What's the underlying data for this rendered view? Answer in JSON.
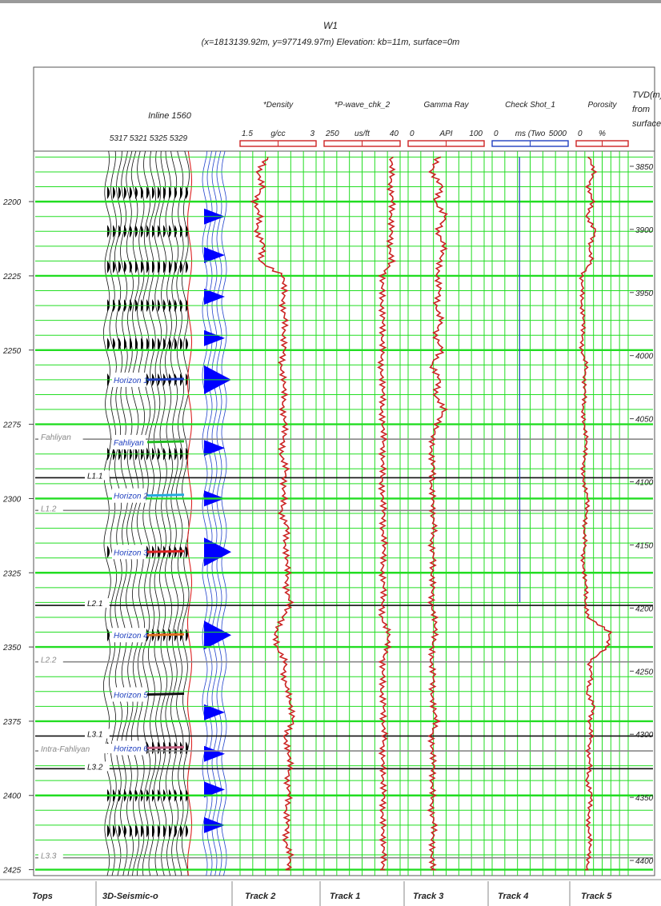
{
  "well": {
    "name": "W1",
    "location": "(x=1813139.92m, y=977149.97m) Elevation: kb=11m, surface=0m"
  },
  "seismic": {
    "title": "Inline 1560",
    "traces": [
      "5317",
      "5321",
      "5325",
      "5329"
    ]
  },
  "tvd_header": {
    "line1": "TVD(m)",
    "line2": "from",
    "line3": "surface"
  },
  "left_axis": {
    "ticks": [
      "2200",
      "2225",
      "2250",
      "2275",
      "2300",
      "2325",
      "2350",
      "2375",
      "2400",
      "2425"
    ]
  },
  "right_axis": {
    "ticks": [
      "3850",
      "3900",
      "3950",
      "4000",
      "4050",
      "4100",
      "4150",
      "4200",
      "4250",
      "4300",
      "4350",
      "4400"
    ]
  },
  "tracks": [
    {
      "key": "density",
      "name": "*Density",
      "min": "1.5",
      "unit": "g/cc",
      "max": "3",
      "color": "#cc2222"
    },
    {
      "key": "pwave",
      "name": "*P-wave_chk_2",
      "min": "250",
      "unit": "us/ft",
      "max": "40",
      "color": "#cc2222"
    },
    {
      "key": "gamma",
      "name": "Gamma Ray",
      "min": "0",
      "unit": "API",
      "max": "100",
      "color": "#cc2222"
    },
    {
      "key": "checkshot",
      "name": "Check Shot_1",
      "min": "0",
      "unit": "ms (Two",
      "max": "5000",
      "color": "#1f3fbf"
    },
    {
      "key": "porosity",
      "name": "Porosity",
      "min": "0",
      "unit": "%",
      "max": "",
      "color": "#cc2222"
    }
  ],
  "tops": [
    {
      "label": "Fahliyan",
      "ms": 2280
    },
    {
      "label": "L1.1",
      "ms": 2293
    },
    {
      "label": "L1.2",
      "ms": 2304
    },
    {
      "label": "L2.1",
      "ms": 2336
    },
    {
      "label": "L2.2",
      "ms": 2355
    },
    {
      "label": "L3.1",
      "ms": 2380
    },
    {
      "label": "Intra-Fahliyan",
      "ms": 2385
    },
    {
      "label": "L3.2",
      "ms": 2391
    },
    {
      "label": "L3.3",
      "ms": 2421
    }
  ],
  "horizons": [
    {
      "label": "Horizon 1",
      "ms": 2260,
      "color": "#1f3fbf"
    },
    {
      "label": "Fahliyan",
      "ms": 2281,
      "color": "#22bb22"
    },
    {
      "label": "Horizon 2",
      "ms": 2299,
      "color": "#22aadd"
    },
    {
      "label": "Horizon 3",
      "ms": 2318,
      "color": "#dd2222"
    },
    {
      "label": "Horizon 4",
      "ms": 2346,
      "color": "#e07020"
    },
    {
      "label": "Horizon 5",
      "ms": 2366,
      "color": "#111111"
    },
    {
      "label": "Horizon 6",
      "ms": 2384,
      "color": "#c06080"
    }
  ],
  "footer": [
    "Tops",
    "3D-Seismic-o",
    "Track 2",
    "Track 1",
    "Track 3",
    "Track 4",
    "Track 5"
  ],
  "colors": {
    "grid": "#22dd22",
    "log": "#cc2222",
    "seismic_fill": "#0000ff"
  },
  "chart_data": {
    "type": "line",
    "ylabel_left": "",
    "ylabel_right": "TVD(m) from surface",
    "ylim_ms": [
      2183,
      2427
    ],
    "ylim_tvd_m": [
      3838,
      4412
    ],
    "series": [
      {
        "name": "*Density",
        "unit": "g/cc",
        "xlim": [
          1.5,
          3
        ],
        "depth_ms": [
          2185,
          2190,
          2195,
          2200,
          2205,
          2210,
          2215,
          2220,
          2225,
          2230,
          2235,
          2240,
          2245,
          2250,
          2255,
          2260,
          2265,
          2270,
          2275,
          2280,
          2285,
          2290,
          2295,
          2300,
          2305,
          2310,
          2315,
          2320,
          2325,
          2330,
          2335,
          2340,
          2345,
          2350,
          2355,
          2360,
          2365,
          2370,
          2375,
          2380,
          2385,
          2390,
          2395,
          2400,
          2405,
          2410,
          2415,
          2420,
          2425
        ],
        "values": [
          2.05,
          1.85,
          1.95,
          1.78,
          1.9,
          1.82,
          1.98,
          1.88,
          2.35,
          2.38,
          2.33,
          2.4,
          2.35,
          2.38,
          2.3,
          2.36,
          2.38,
          2.33,
          2.4,
          2.36,
          2.3,
          2.42,
          2.35,
          2.38,
          2.3,
          2.45,
          2.38,
          2.42,
          2.45,
          2.4,
          2.5,
          2.35,
          2.2,
          2.22,
          2.4,
          2.35,
          2.45,
          2.5,
          2.55,
          2.38,
          2.45,
          2.5,
          2.42,
          2.48,
          2.4,
          2.45,
          2.38,
          2.5,
          2.45
        ]
      },
      {
        "name": "*P-wave_chk_2",
        "unit": "us/ft",
        "xlim": [
          250,
          40
        ],
        "depth_ms": [
          2185,
          2190,
          2195,
          2200,
          2205,
          2210,
          2215,
          2220,
          2225,
          2230,
          2235,
          2240,
          2245,
          2250,
          2255,
          2260,
          2265,
          2270,
          2275,
          2280,
          2285,
          2290,
          2295,
          2300,
          2305,
          2310,
          2315,
          2320,
          2325,
          2330,
          2335,
          2340,
          2345,
          2350,
          2355,
          2360,
          2365,
          2370,
          2375,
          2380,
          2385,
          2390,
          2395,
          2400,
          2405,
          2410,
          2415,
          2420,
          2425
        ],
        "values": [
          65,
          62,
          68,
          60,
          66,
          63,
          70,
          62,
          90,
          88,
          92,
          86,
          90,
          88,
          94,
          90,
          86,
          92,
          88,
          84,
          90,
          86,
          92,
          88,
          84,
          90,
          82,
          86,
          90,
          84,
          88,
          92,
          72,
          74,
          90,
          86,
          92,
          84,
          88,
          82,
          90,
          86,
          88,
          84,
          90,
          86,
          88,
          84,
          88
        ]
      },
      {
        "name": "Gamma Ray",
        "unit": "API",
        "xlim": [
          0,
          100
        ],
        "depth_ms": [
          2185,
          2190,
          2195,
          2200,
          2205,
          2210,
          2215,
          2220,
          2225,
          2230,
          2235,
          2240,
          2245,
          2250,
          2255,
          2260,
          2265,
          2270,
          2275,
          2280,
          2285,
          2290,
          2295,
          2300,
          2305,
          2310,
          2315,
          2320,
          2325,
          2330,
          2335,
          2340,
          2345,
          2350,
          2355,
          2360,
          2365,
          2370,
          2375,
          2380,
          2385,
          2390,
          2395,
          2400,
          2405,
          2410,
          2415,
          2420,
          2425
        ],
        "values": [
          40,
          30,
          45,
          35,
          50,
          38,
          48,
          42,
          38,
          42,
          36,
          44,
          35,
          45,
          30,
          42,
          35,
          48,
          38,
          32,
          30,
          34,
          30,
          33,
          32,
          35,
          30,
          34,
          31,
          33,
          30,
          35,
          36,
          32,
          30,
          34,
          31,
          33,
          38,
          30,
          32,
          34,
          31,
          33,
          30,
          35,
          32,
          31,
          33
        ]
      },
      {
        "name": "Check Shot_1",
        "unit": "ms (Two",
        "xlim": [
          0,
          5000
        ],
        "depth_ms": [
          2185,
          2335
        ],
        "values": [
          1800,
          1820
        ]
      },
      {
        "name": "Porosity",
        "unit": "%",
        "xlim": [
          0,
          40
        ],
        "depth_ms": [
          2185,
          2190,
          2195,
          2200,
          2205,
          2210,
          2215,
          2220,
          2225,
          2230,
          2235,
          2240,
          2245,
          2250,
          2255,
          2260,
          2265,
          2270,
          2275,
          2280,
          2285,
          2290,
          2295,
          2300,
          2305,
          2310,
          2315,
          2320,
          2325,
          2330,
          2335,
          2340,
          2345,
          2350,
          2355,
          2360,
          2365,
          2370,
          2375,
          2380,
          2385,
          2390,
          2395,
          2400,
          2405,
          2410,
          2415,
          2420,
          2425
        ],
        "values": [
          10,
          14,
          9,
          13,
          8,
          15,
          10,
          12,
          4,
          5,
          4,
          6,
          5,
          4,
          8,
          6,
          7,
          5,
          6,
          8,
          7,
          5,
          6,
          9,
          8,
          6,
          7,
          5,
          6,
          8,
          7,
          9,
          26,
          24,
          10,
          12,
          8,
          14,
          10,
          12,
          9,
          11,
          8,
          12,
          10,
          9,
          11,
          10,
          8
        ]
      }
    ]
  }
}
